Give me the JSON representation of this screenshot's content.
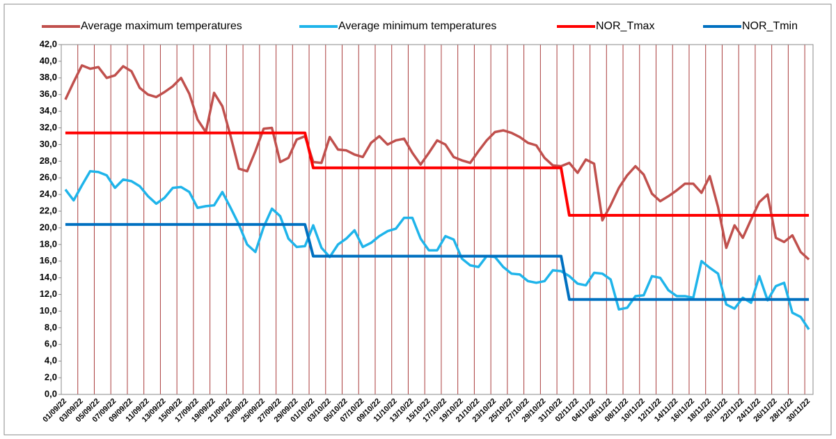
{
  "chart_data": {
    "type": "line",
    "categories": [
      "01/09/22",
      null,
      "03/09/22",
      null,
      "05/09/22",
      null,
      "07/09/22",
      null,
      "09/09/22",
      null,
      "11/09/22",
      null,
      "13/09/22",
      null,
      "15/09/22",
      null,
      "17/09/22",
      null,
      "19/09/22",
      null,
      "21/09/22",
      null,
      "23/09/22",
      null,
      "25/09/22",
      null,
      "27/09/22",
      null,
      "29/09/22",
      null,
      "01/10/22",
      null,
      "03/10/22",
      null,
      "05/10/22",
      null,
      "07/10/22",
      null,
      "09/10/22",
      null,
      "11/10/22",
      null,
      "13/10/22",
      null,
      "15/10/22",
      null,
      "17/10/22",
      null,
      "19/10/22",
      null,
      "21/10/22",
      null,
      "23/10/22",
      null,
      "25/10/22",
      null,
      "27/10/22",
      null,
      "29/10/22",
      null,
      "31/10/22",
      null,
      "02/11/22",
      null,
      "04/11/22",
      null,
      "06/11/22",
      null,
      "08/11/22",
      null,
      "10/11/22",
      null,
      "12/11/22",
      null,
      "14/11/22",
      null,
      "16/11/22",
      null,
      "18/11/22",
      null,
      "20/11/22",
      null,
      "22/11/22",
      null,
      "24/11/22",
      null,
      "26/11/22",
      null,
      "28/11/22",
      null,
      "30/11/22"
    ],
    "series": [
      {
        "name": "Average maximum temperatures",
        "color": "#c0504d",
        "values": [
          35.4,
          37.5,
          39.5,
          39.1,
          39.3,
          38.0,
          38.3,
          39.4,
          38.8,
          36.8,
          36.0,
          35.7,
          36.3,
          37.0,
          38.0,
          36.1,
          33.0,
          31.5,
          36.2,
          34.6,
          31.0,
          27.1,
          26.8,
          29.2,
          31.9,
          32.0,
          27.9,
          28.4,
          30.6,
          31.0,
          27.9,
          27.8,
          30.9,
          29.4,
          29.3,
          28.8,
          28.5,
          30.2,
          31.0,
          30.0,
          30.5,
          30.7,
          29.0,
          27.6,
          29.0,
          30.5,
          30.0,
          28.5,
          28.1,
          27.8,
          29.2,
          30.5,
          31.5,
          31.7,
          31.4,
          30.9,
          30.2,
          29.9,
          28.4,
          27.5,
          27.4,
          27.8,
          26.6,
          28.2,
          27.7,
          20.9,
          22.7,
          24.8,
          26.3,
          27.4,
          26.4,
          24.1,
          23.2,
          23.8,
          24.5,
          25.3,
          25.3,
          24.2,
          26.2,
          22.5,
          17.6,
          20.3,
          18.8,
          21.0,
          23.1,
          24.0,
          18.8,
          18.3,
          19.1,
          17.1,
          16.2
        ]
      },
      {
        "name": "Average minimum temperatures",
        "color": "#1fb4ea",
        "values": [
          24.6,
          23.3,
          25.1,
          26.8,
          26.7,
          26.3,
          24.8,
          25.8,
          25.6,
          25.0,
          23.8,
          22.9,
          23.6,
          24.8,
          24.9,
          24.3,
          22.4,
          22.6,
          22.7,
          24.3,
          22.4,
          20.4,
          18.0,
          17.1,
          20.1,
          22.3,
          21.4,
          18.7,
          17.7,
          17.8,
          20.3,
          17.6,
          16.5,
          18.0,
          18.7,
          19.7,
          17.7,
          18.2,
          19.0,
          19.6,
          19.9,
          21.2,
          21.2,
          18.7,
          17.3,
          17.3,
          19.0,
          18.6,
          16.3,
          15.5,
          15.3,
          16.6,
          16.5,
          15.3,
          14.5,
          14.4,
          13.6,
          13.4,
          13.6,
          14.9,
          14.8,
          14.2,
          13.3,
          13.1,
          14.6,
          14.5,
          13.8,
          10.2,
          10.4,
          11.8,
          11.9,
          14.2,
          14.0,
          12.5,
          11.8,
          11.8,
          11.6,
          16.0,
          15.2,
          14.5,
          10.8,
          10.3,
          11.6,
          11.0,
          14.2,
          11.3,
          13.0,
          13.4,
          9.8,
          9.3,
          7.8
        ]
      },
      {
        "name": "NOR_Tmax",
        "color": "#ff0000",
        "values": [
          31.4,
          31.4,
          31.4,
          31.4,
          31.4,
          31.4,
          31.4,
          31.4,
          31.4,
          31.4,
          31.4,
          31.4,
          31.4,
          31.4,
          31.4,
          31.4,
          31.4,
          31.4,
          31.4,
          31.4,
          31.4,
          31.4,
          31.4,
          31.4,
          31.4,
          31.4,
          31.4,
          31.4,
          31.4,
          31.4,
          27.2,
          27.2,
          27.2,
          27.2,
          27.2,
          27.2,
          27.2,
          27.2,
          27.2,
          27.2,
          27.2,
          27.2,
          27.2,
          27.2,
          27.2,
          27.2,
          27.2,
          27.2,
          27.2,
          27.2,
          27.2,
          27.2,
          27.2,
          27.2,
          27.2,
          27.2,
          27.2,
          27.2,
          27.2,
          27.2,
          27.2,
          21.5,
          21.5,
          21.5,
          21.5,
          21.5,
          21.5,
          21.5,
          21.5,
          21.5,
          21.5,
          21.5,
          21.5,
          21.5,
          21.5,
          21.5,
          21.5,
          21.5,
          21.5,
          21.5,
          21.5,
          21.5,
          21.5,
          21.5,
          21.5,
          21.5,
          21.5,
          21.5,
          21.5,
          21.5,
          21.5
        ]
      },
      {
        "name": "NOR_Tmin",
        "color": "#0070c0",
        "values": [
          20.4,
          20.4,
          20.4,
          20.4,
          20.4,
          20.4,
          20.4,
          20.4,
          20.4,
          20.4,
          20.4,
          20.4,
          20.4,
          20.4,
          20.4,
          20.4,
          20.4,
          20.4,
          20.4,
          20.4,
          20.4,
          20.4,
          20.4,
          20.4,
          20.4,
          20.4,
          20.4,
          20.4,
          20.4,
          20.4,
          16.6,
          16.6,
          16.6,
          16.6,
          16.6,
          16.6,
          16.6,
          16.6,
          16.6,
          16.6,
          16.6,
          16.6,
          16.6,
          16.6,
          16.6,
          16.6,
          16.6,
          16.6,
          16.6,
          16.6,
          16.6,
          16.6,
          16.6,
          16.6,
          16.6,
          16.6,
          16.6,
          16.6,
          16.6,
          16.6,
          16.6,
          11.4,
          11.4,
          11.4,
          11.4,
          11.4,
          11.4,
          11.4,
          11.4,
          11.4,
          11.4,
          11.4,
          11.4,
          11.4,
          11.4,
          11.4,
          11.4,
          11.4,
          11.4,
          11.4,
          11.4,
          11.4,
          11.4,
          11.4,
          11.4,
          11.4,
          11.4,
          11.4,
          11.4,
          11.4,
          11.4
        ]
      }
    ],
    "ylim": [
      0,
      42
    ],
    "yticks": [
      {
        "value": 0,
        "label": "0,0"
      },
      {
        "value": 2,
        "label": "2,0"
      },
      {
        "value": 4,
        "label": "4,0"
      },
      {
        "value": 6,
        "label": "6,0"
      },
      {
        "value": 8,
        "label": "8,0"
      },
      {
        "value": 10,
        "label": "10,0"
      },
      {
        "value": 12,
        "label": "12,0"
      },
      {
        "value": 14,
        "label": "14,0"
      },
      {
        "value": 16,
        "label": "16,0"
      },
      {
        "value": 18,
        "label": "18,0"
      },
      {
        "value": 20,
        "label": "20,0"
      },
      {
        "value": 22,
        "label": "22,0"
      },
      {
        "value": 24,
        "label": "24,0"
      },
      {
        "value": 26,
        "label": "26,0"
      },
      {
        "value": 28,
        "label": "28,0"
      },
      {
        "value": 30,
        "label": "30,0"
      },
      {
        "value": 32,
        "label": "32,0"
      },
      {
        "value": 34,
        "label": "34,0"
      },
      {
        "value": 36,
        "label": "36,0"
      },
      {
        "value": 38,
        "label": "38,0"
      },
      {
        "value": 40,
        "label": "40,0"
      },
      {
        "value": 42,
        "label": "42,0"
      }
    ],
    "grid": true,
    "grid_color": "#a93b3b",
    "legend": "top"
  }
}
